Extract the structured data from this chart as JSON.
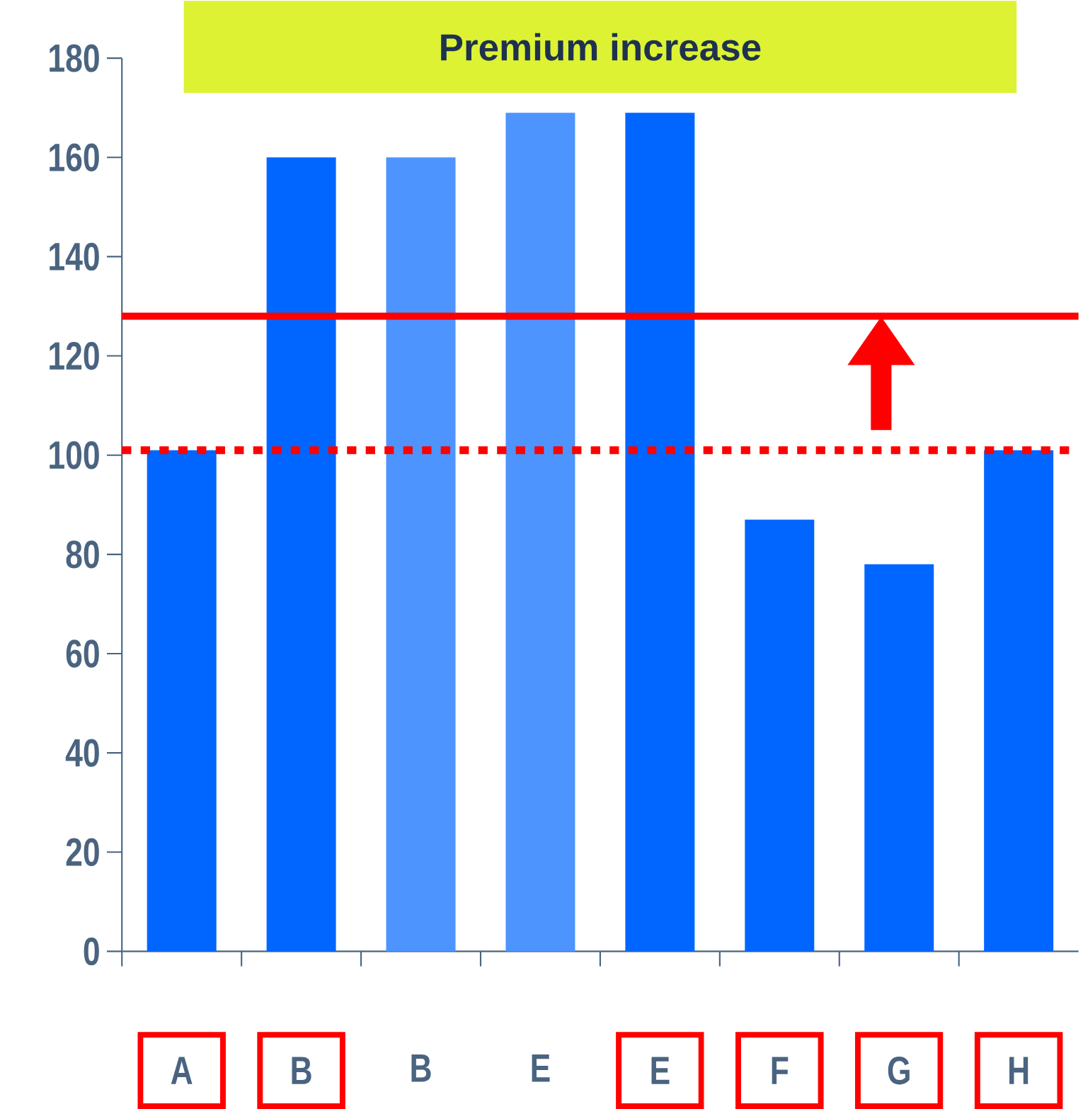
{
  "chart_data": {
    "type": "bar",
    "title": "Premium increase",
    "categories": [
      "A",
      "B",
      "B",
      "E",
      "E",
      "F",
      "G",
      "H"
    ],
    "values": [
      101,
      160,
      160,
      169,
      169,
      87,
      78,
      101
    ],
    "colors": [
      "#0066ff",
      "#0066ff",
      "#4d94ff",
      "#4d94ff",
      "#0066ff",
      "#0066ff",
      "#0066ff",
      "#0066ff"
    ],
    "ylim": [
      0,
      180
    ],
    "yticks": [
      0,
      20,
      40,
      60,
      80,
      100,
      120,
      140,
      160,
      180
    ],
    "grid": false,
    "ref_lines": [
      {
        "axis": "y",
        "value": 128,
        "color": "#ff0000",
        "line_style": "solid"
      },
      {
        "axis": "y",
        "value": 101,
        "color": "#ff0000",
        "line_style": "dotted"
      }
    ]
  }
}
